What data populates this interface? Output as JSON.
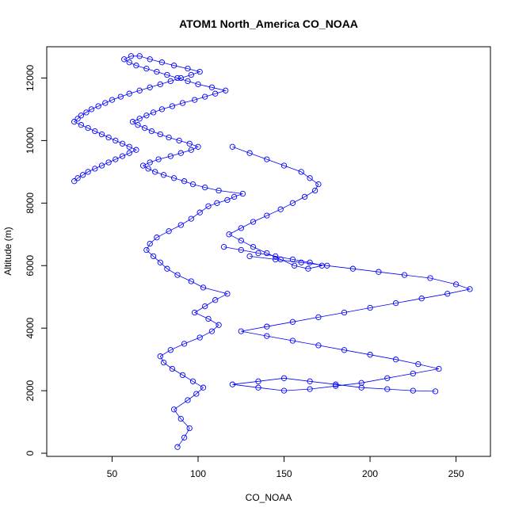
{
  "chart_data": {
    "type": "scatter",
    "title": "ATOM1 North_America CO_NOAA",
    "xlabel": "CO_NOAA",
    "ylabel": "Altitude (m)",
    "xlim": [
      12,
      270
    ],
    "ylim": [
      -100,
      13000
    ],
    "x_ticks": [
      50,
      100,
      150,
      200,
      250
    ],
    "y_ticks": [
      0,
      2000,
      4000,
      6000,
      8000,
      10000,
      12000
    ],
    "grid": false,
    "legend": "none",
    "marker": "open-circle",
    "connect_points": true,
    "color": "#0000ff",
    "series": [
      {
        "x": [
          88,
          92,
          95,
          90,
          86,
          94,
          99,
          103,
          97,
          91,
          85,
          80,
          78,
          84,
          92,
          101,
          108,
          112,
          106,
          98,
          104,
          110,
          117,
          103,
          96,
          88,
          82,
          78,
          74,
          70,
          72,
          76,
          83,
          90,
          96,
          101,
          106,
          111,
          117,
          121,
          126,
          112,
          104,
          97,
          92,
          86,
          80,
          75,
          71,
          68,
          72,
          77,
          84,
          90,
          96,
          100,
          95,
          89,
          83,
          78,
          73,
          69,
          65,
          62,
          66,
          70,
          74,
          79,
          85,
          91,
          98,
          104,
          110,
          116,
          108,
          100,
          94,
          88,
          82,
          76,
          70,
          64,
          60,
          57,
          61,
          66,
          72,
          79,
          86,
          94,
          101,
          96,
          90,
          84,
          78,
          72,
          66,
          60,
          55,
          50,
          46,
          42,
          38,
          35,
          32,
          30,
          28,
          32,
          36,
          40,
          44,
          48,
          52,
          56,
          60,
          64,
          60,
          56,
          52,
          48,
          44,
          40,
          36,
          33,
          30,
          28
        ],
        "y": [
          200,
          500,
          800,
          1100,
          1400,
          1700,
          1900,
          2100,
          2300,
          2500,
          2700,
          2900,
          3100,
          3300,
          3500,
          3700,
          3900,
          4100,
          4300,
          4500,
          4700,
          4900,
          5100,
          5300,
          5500,
          5700,
          5900,
          6100,
          6300,
          6500,
          6700,
          6900,
          7100,
          7300,
          7500,
          7700,
          7900,
          8000,
          8100,
          8200,
          8300,
          8400,
          8500,
          8600,
          8700,
          8800,
          8900,
          9000,
          9100,
          9200,
          9300,
          9400,
          9500,
          9600,
          9700,
          9800,
          9900,
          10000,
          10100,
          10200,
          10300,
          10400,
          10500,
          10600,
          10700,
          10800,
          10900,
          11000,
          11100,
          11200,
          11300,
          11400,
          11500,
          11600,
          11700,
          11800,
          11900,
          12000,
          12100,
          12200,
          12300,
          12400,
          12500,
          12600,
          12700,
          12700,
          12600,
          12500,
          12400,
          12300,
          12200,
          12100,
          12000,
          11900,
          11800,
          11700,
          11600,
          11500,
          11400,
          11300,
          11200,
          11100,
          11000,
          10900,
          10800,
          10700,
          10600,
          10500,
          10400,
          10300,
          10200,
          10100,
          10000,
          9900,
          9800,
          9700,
          9600,
          9500,
          9400,
          9300,
          9200,
          9100,
          9000,
          8900,
          8800,
          8700
        ]
      },
      {
        "x": [
          130,
          145,
          160,
          175,
          190,
          205,
          220,
          235,
          250,
          258,
          245,
          230,
          215,
          200,
          185,
          170,
          155,
          140,
          125,
          140,
          155,
          170,
          185,
          200,
          215,
          228,
          240,
          225,
          210,
          195,
          180,
          165,
          150,
          135,
          120,
          135,
          150,
          165,
          180,
          195,
          210,
          225,
          238
        ],
        "y": [
          6300,
          6200,
          6100,
          6000,
          5900,
          5800,
          5700,
          5600,
          5400,
          5250,
          5100,
          4950,
          4800,
          4650,
          4500,
          4350,
          4200,
          4050,
          3900,
          3750,
          3600,
          3450,
          3300,
          3150,
          3000,
          2850,
          2700,
          2550,
          2400,
          2250,
          2150,
          2050,
          2000,
          2100,
          2200,
          2300,
          2400,
          2300,
          2200,
          2100,
          2050,
          2000,
          1980
        ]
      },
      {
        "x": [
          120,
          130,
          140,
          150,
          160,
          165,
          170,
          168,
          162,
          155,
          148,
          140,
          132,
          125,
          118,
          125,
          132,
          140,
          148,
          156,
          164,
          172,
          165,
          155,
          145,
          135,
          125,
          115
        ],
        "y": [
          9800,
          9600,
          9400,
          9200,
          9000,
          8800,
          8600,
          8400,
          8200,
          8000,
          7800,
          7600,
          7400,
          7200,
          7000,
          6800,
          6600,
          6400,
          6200,
          6000,
          5900,
          6000,
          6100,
          6200,
          6300,
          6400,
          6500,
          6600
        ]
      }
    ]
  }
}
